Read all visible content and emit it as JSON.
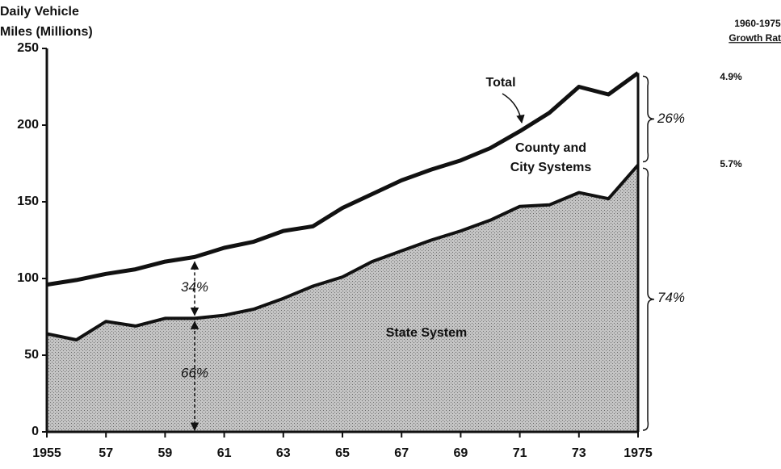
{
  "chart_data": {
    "type": "area",
    "ylabel": [
      "Daily Vehicle",
      "Miles (Millions)"
    ],
    "x": [
      1955,
      1956,
      1957,
      1958,
      1959,
      1960,
      1961,
      1962,
      1963,
      1964,
      1965,
      1966,
      1967,
      1968,
      1969,
      1970,
      1971,
      1972,
      1973,
      1974,
      1975
    ],
    "series": [
      {
        "name": "State System",
        "color": "#b4b4b4",
        "values": [
          64,
          60,
          72,
          69,
          74,
          74,
          76,
          80,
          87,
          95,
          101,
          111,
          118,
          125,
          131,
          138,
          147,
          148,
          156,
          152,
          174
        ]
      },
      {
        "name": "Total",
        "color": "#ffffff",
        "values": [
          96,
          99,
          103,
          106,
          111,
          114,
          120,
          124,
          131,
          134,
          146,
          155,
          164,
          171,
          177,
          185,
          196,
          208,
          225,
          220,
          234
        ]
      }
    ],
    "xlim": [
      1955,
      1975
    ],
    "xticks": [
      1955,
      {
        "value": 1957,
        "label": "57"
      },
      {
        "value": 1959,
        "label": "59"
      },
      {
        "value": 1961,
        "label": "61"
      },
      {
        "value": 1963,
        "label": "63"
      },
      {
        "value": 1965,
        "label": "65"
      },
      {
        "value": 1967,
        "label": "67"
      },
      {
        "value": 1969,
        "label": "69"
      },
      {
        "value": 1971,
        "label": "71"
      },
      {
        "value": 1973,
        "label": "73"
      },
      1975
    ],
    "ylim": [
      0,
      250
    ],
    "yticks": [
      0,
      50,
      100,
      150,
      200,
      250
    ],
    "annotations": {
      "county": [
        "County and",
        "City Systems"
      ],
      "share_1960_county": "34%",
      "share_1960_state": "66%",
      "share_1975_county": "26%",
      "share_1975_state": "74%"
    },
    "growth_rate": {
      "title": [
        "1960-1975",
        "Growth Rate"
      ],
      "labels": [
        "4.9%",
        "5.7%"
      ]
    }
  }
}
